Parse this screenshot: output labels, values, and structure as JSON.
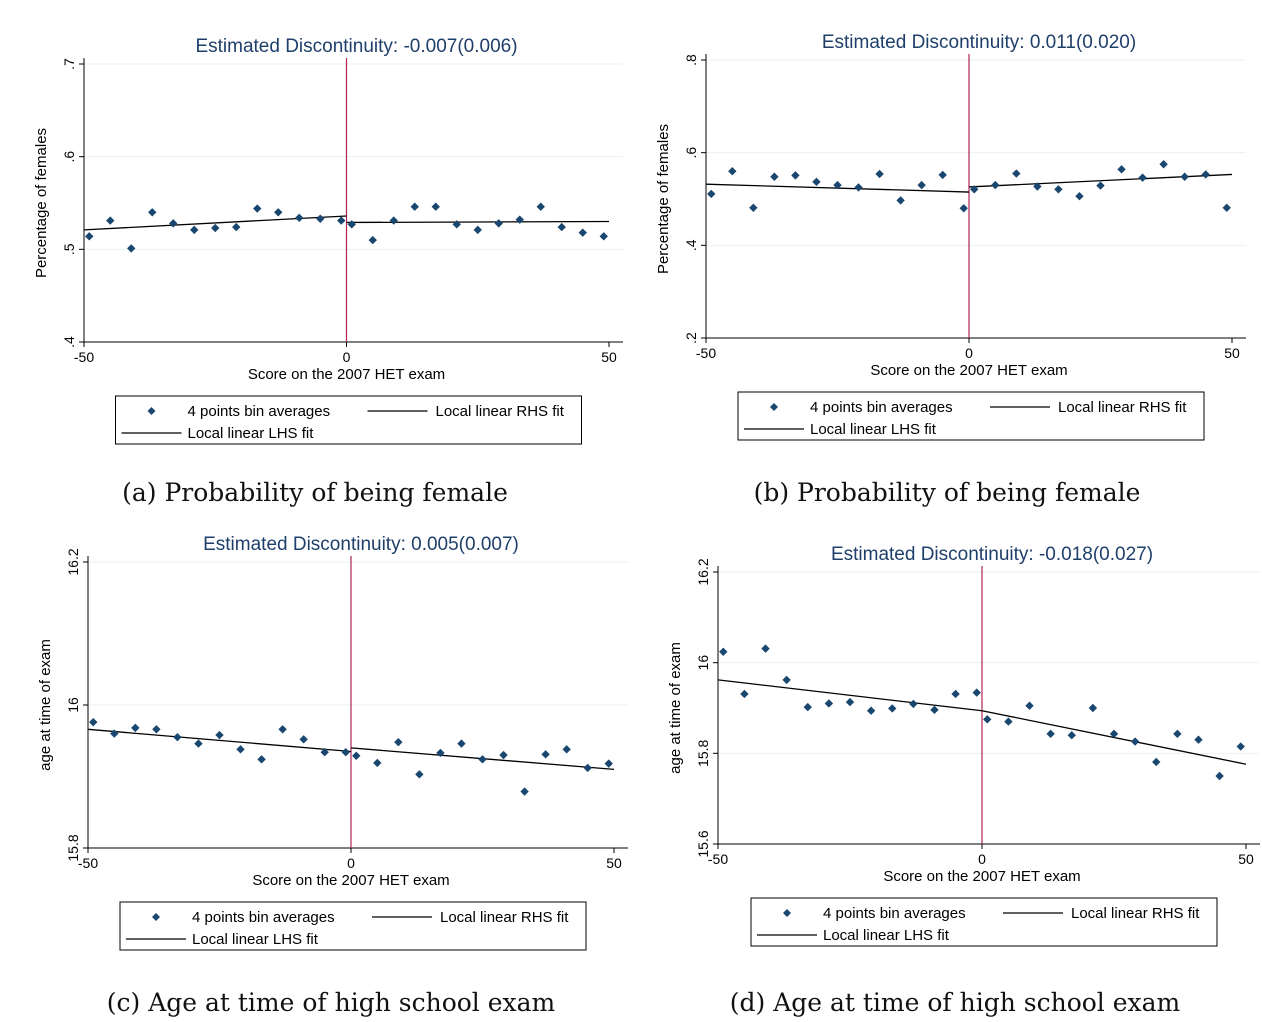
{
  "legend": {
    "bins": "4 points bin averages",
    "rhs": "Local linear RHS fit",
    "lhs": "Local linear LHS fit"
  },
  "colors": {
    "title": "#1f3f6b",
    "marker": "#1a476f",
    "cutoff": "#b0245a",
    "fit": "#000000",
    "grid": "#eaf2f3"
  },
  "chart_data": [
    {
      "type": "scatter",
      "title": "Estimated Discontinuity: -0.007(0.006)",
      "caption": "(a) Probability of being female",
      "xlabel": "Score on the 2007 HET exam",
      "ylabel": "Percentage of females",
      "xlim": [
        -50,
        50
      ],
      "ylim": [
        0.4,
        0.7
      ],
      "xticks": [
        -50,
        0,
        50
      ],
      "xtick_labels": [
        "-50",
        "0",
        "50"
      ],
      "yticks": [
        0.4,
        0.5,
        0.6,
        0.7
      ],
      "ytick_labels": [
        ".4",
        ".5",
        ".6",
        ".7"
      ],
      "cutoff": 0,
      "series": [
        {
          "name": "4 points bin averages",
          "x": [
            -49,
            -45,
            -41,
            -37,
            -33,
            -29,
            -25,
            -21,
            -17,
            -13,
            -9,
            -5,
            -1,
            1,
            5,
            9,
            13,
            17,
            21,
            25,
            29,
            33,
            37,
            41,
            45,
            49
          ],
          "y": [
            0.514,
            0.531,
            0.501,
            0.54,
            0.528,
            0.521,
            0.523,
            0.524,
            0.544,
            0.54,
            0.534,
            0.533,
            0.531,
            0.527,
            0.51,
            0.531,
            0.546,
            0.546,
            0.527,
            0.521,
            0.528,
            0.532,
            0.546,
            0.524,
            0.518,
            0.514
          ]
        },
        {
          "name": "Local linear LHS fit",
          "x": [
            -50,
            0
          ],
          "y": [
            0.521,
            0.536
          ]
        },
        {
          "name": "Local linear RHS fit",
          "x": [
            0,
            50
          ],
          "y": [
            0.529,
            0.53
          ]
        }
      ]
    },
    {
      "type": "scatter",
      "title": "Estimated Discontinuity: 0.011(0.020)",
      "caption": "(b) Probability of being female",
      "xlabel": "Score on the 2007 HET exam",
      "ylabel": "Percentage of females",
      "xlim": [
        -50,
        50
      ],
      "ylim": [
        0.2,
        0.8
      ],
      "xticks": [
        -50,
        0,
        50
      ],
      "xtick_labels": [
        "-50",
        "0",
        "50"
      ],
      "yticks": [
        0.2,
        0.4,
        0.6,
        0.8
      ],
      "ytick_labels": [
        ".2",
        ".4",
        ".6",
        ".8"
      ],
      "cutoff": 0,
      "series": [
        {
          "name": "4 points bin averages",
          "x": [
            -49,
            -45,
            -41,
            -37,
            -33,
            -29,
            -25,
            -21,
            -17,
            -13,
            -9,
            -5,
            -1,
            1,
            5,
            9,
            13,
            17,
            21,
            25,
            29,
            33,
            37,
            41,
            45,
            49
          ],
          "y": [
            0.511,
            0.56,
            0.481,
            0.548,
            0.551,
            0.537,
            0.53,
            0.525,
            0.554,
            0.497,
            0.53,
            0.552,
            0.48,
            0.521,
            0.53,
            0.555,
            0.527,
            0.521,
            0.506,
            0.529,
            0.564,
            0.546,
            0.575,
            0.548,
            0.553,
            0.481
          ]
        },
        {
          "name": "Local linear LHS fit",
          "x": [
            -50,
            0
          ],
          "y": [
            0.532,
            0.515
          ]
        },
        {
          "name": "Local linear RHS fit",
          "x": [
            0,
            50
          ],
          "y": [
            0.526,
            0.553
          ]
        }
      ]
    },
    {
      "type": "scatter",
      "title": "Estimated Discontinuity: 0.005(0.007)",
      "caption": "(c) Age at time of high school exam",
      "xlabel": "Score on the 2007 HET exam",
      "ylabel": "age at time of exam",
      "xlim": [
        -50,
        50
      ],
      "ylim": [
        15.8,
        16.2
      ],
      "xticks": [
        -50,
        0,
        50
      ],
      "xtick_labels": [
        "-50",
        "0",
        "50"
      ],
      "yticks": [
        15.8,
        16.0,
        16.2
      ],
      "ytick_labels": [
        "15.8",
        "16",
        "16.2"
      ],
      "cutoff": 0,
      "series": [
        {
          "name": "4 points bin averages",
          "x": [
            -49,
            -45,
            -41,
            -37,
            -33,
            -29,
            -25,
            -21,
            -17,
            -13,
            -9,
            -5,
            -1,
            1,
            5,
            9,
            13,
            17,
            21,
            25,
            29,
            33,
            37,
            41,
            45,
            49
          ],
          "y": [
            15.976,
            15.96,
            15.968,
            15.966,
            15.955,
            15.946,
            15.958,
            15.938,
            15.924,
            15.966,
            15.952,
            15.934,
            15.934,
            15.929,
            15.919,
            15.948,
            15.903,
            15.933,
            15.946,
            15.924,
            15.93,
            15.879,
            15.931,
            15.938,
            15.912,
            15.918
          ]
        },
        {
          "name": "Local linear LHS fit",
          "x": [
            -50,
            0
          ],
          "y": [
            15.966,
            15.935
          ]
        },
        {
          "name": "Local linear RHS fit",
          "x": [
            0,
            50
          ],
          "y": [
            15.94,
            15.91
          ]
        }
      ]
    },
    {
      "type": "scatter",
      "title": "Estimated Discontinuity: -0.018(0.027)",
      "caption": "(d) Age at time of high school exam",
      "xlabel": "Score on the 2007 HET exam",
      "ylabel": "age at time of exam",
      "xlim": [
        -50,
        50
      ],
      "ylim": [
        15.6,
        16.2
      ],
      "xticks": [
        -50,
        0,
        50
      ],
      "xtick_labels": [
        "-50",
        "0",
        "50"
      ],
      "yticks": [
        15.6,
        15.8,
        16.0,
        16.2
      ],
      "ytick_labels": [
        "15.6",
        "15.8",
        "16",
        "16.2"
      ],
      "cutoff": 0,
      "series": [
        {
          "name": "4 points bin averages",
          "x": [
            -49,
            -45,
            -41,
            -37,
            -33,
            -29,
            -25,
            -21,
            -17,
            -13,
            -9,
            -5,
            -1,
            1,
            5,
            9,
            13,
            17,
            21,
            25,
            29,
            33,
            37,
            41,
            45,
            49
          ],
          "y": [
            16.024,
            15.931,
            16.031,
            15.962,
            15.902,
            15.91,
            15.913,
            15.894,
            15.899,
            15.909,
            15.896,
            15.931,
            15.934,
            15.875,
            15.87,
            15.905,
            15.843,
            15.84,
            15.9,
            15.843,
            15.826,
            15.781,
            15.843,
            15.83,
            15.75,
            15.815
          ]
        },
        {
          "name": "Local linear LHS fit",
          "x": [
            -50,
            0
          ],
          "y": [
            15.962,
            15.894
          ]
        },
        {
          "name": "Local linear RHS fit",
          "x": [
            0,
            50
          ],
          "y": [
            15.894,
            15.776
          ]
        }
      ]
    }
  ]
}
